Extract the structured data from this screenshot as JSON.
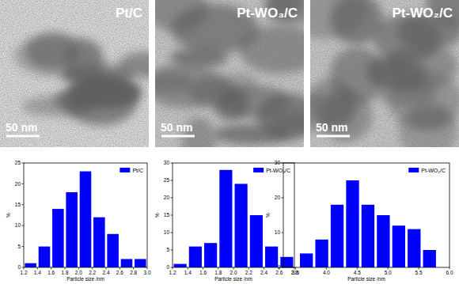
{
  "images": [
    {
      "label": "Pt/C",
      "scale_bar": "50 nm"
    },
    {
      "label": "Pt-WO₃/C",
      "scale_bar": "50 nm"
    },
    {
      "label": "Pt-WO₂/C",
      "scale_bar": "50 nm"
    }
  ],
  "chart_data": [
    {
      "type": "histogram",
      "x_label": "Particle size /nm",
      "y_label": "%",
      "bins": [
        1.2,
        1.4,
        1.6,
        1.8,
        2.0,
        2.2,
        2.4,
        2.6,
        2.8,
        3.0
      ],
      "series": [
        {
          "name": "Pt/C",
          "color": "#0000ff",
          "values": [
            1,
            5,
            14,
            18,
            23,
            12,
            8,
            2,
            2
          ]
        }
      ],
      "xlim": [
        1.2,
        3.0
      ],
      "xticks": [
        1.2,
        1.4,
        1.6,
        1.8,
        {
          "value": 2,
          "label": "2.0"
        },
        2.2,
        2.4,
        2.6,
        2.8,
        {
          "value": 3,
          "label": "3.0"
        }
      ],
      "ylim": [
        0,
        25
      ],
      "yticks": [
        0,
        5,
        10,
        15,
        20,
        25
      ],
      "grid": false,
      "legend": "upper right"
    },
    {
      "type": "histogram",
      "x_label": "Particle size /nm",
      "y_label": "%",
      "bins": [
        1.2,
        1.4,
        1.6,
        1.8,
        2.0,
        2.2,
        2.4,
        2.6,
        2.8
      ],
      "series": [
        {
          "name": "Pt-WO₃/C",
          "color": "#0000ff",
          "values": [
            1,
            6,
            7,
            28,
            24,
            15,
            6,
            3
          ]
        }
      ],
      "xlim": [
        1.2,
        2.8
      ],
      "xticks": [
        1.2,
        1.4,
        1.6,
        1.8,
        {
          "value": 2,
          "label": "2.0"
        },
        2.2,
        2.4,
        2.6,
        2.8
      ],
      "ylim": [
        0,
        30
      ],
      "yticks": [
        0,
        5,
        10,
        15,
        20,
        25,
        30
      ],
      "grid": false,
      "legend": "upper right"
    },
    {
      "type": "histogram",
      "x_label": "Particle size /nm",
      "y_label": "%",
      "bins": [
        3.55,
        3.8,
        4.05,
        4.3,
        4.55,
        4.8,
        5.05,
        5.3,
        5.55,
        5.8
      ],
      "series": [
        {
          "name": "Pt-WO₂/C",
          "color": "#0000ff",
          "values": [
            4,
            8,
            18,
            25,
            18,
            15,
            12,
            11,
            5
          ]
        }
      ],
      "xlim": [
        3.3,
        6.0
      ],
      "xticks": [
        3.5,
        {
          "value": 4,
          "label": "4.0"
        },
        4.5,
        {
          "value": 5,
          "label": "5.0"
        },
        5.5,
        {
          "value": 6,
          "label": "6.0"
        }
      ],
      "ylim": [
        0,
        30
      ],
      "yticks": [
        0,
        10,
        20,
        30
      ],
      "grid": false,
      "legend": "upper right"
    }
  ]
}
